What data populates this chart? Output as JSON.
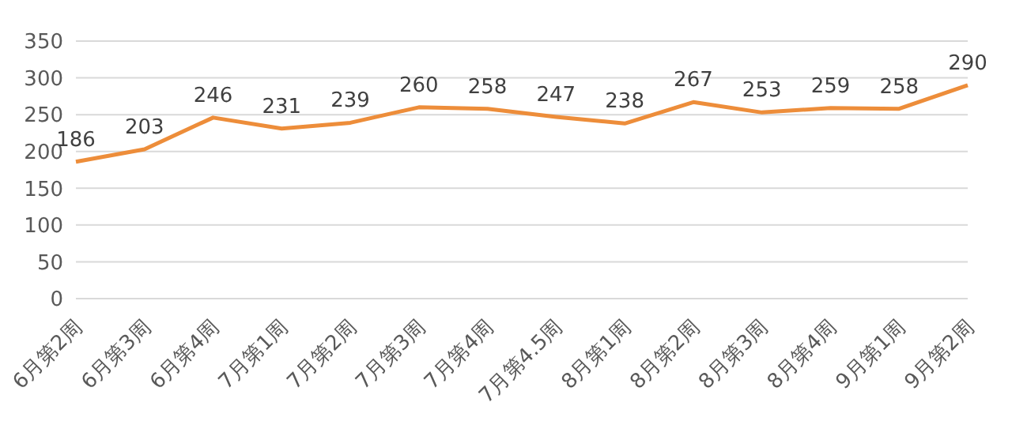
{
  "chart_data": {
    "type": "line",
    "categories": [
      "6月第2周",
      "6月第3周",
      "6月第4周",
      "7月第1周",
      "7月第2周",
      "7月第3周",
      "7月第4周",
      "7月第4.5周",
      "8月第1周",
      "8月第2周",
      "8月第3周",
      "8月第4周",
      "9月第1周",
      "9月第2周"
    ],
    "series": [
      {
        "color": "#ed8d3a",
        "values": [
          186,
          203,
          246,
          231,
          239,
          260,
          258,
          247,
          238,
          267,
          253,
          259,
          258,
          290
        ]
      }
    ],
    "ylim": [
      0,
      350
    ],
    "yticks": [
      0,
      50,
      100,
      150,
      200,
      250,
      300,
      350
    ],
    "grid": "y",
    "data_labels": true,
    "marker": "none",
    "line_style": "solid"
  }
}
